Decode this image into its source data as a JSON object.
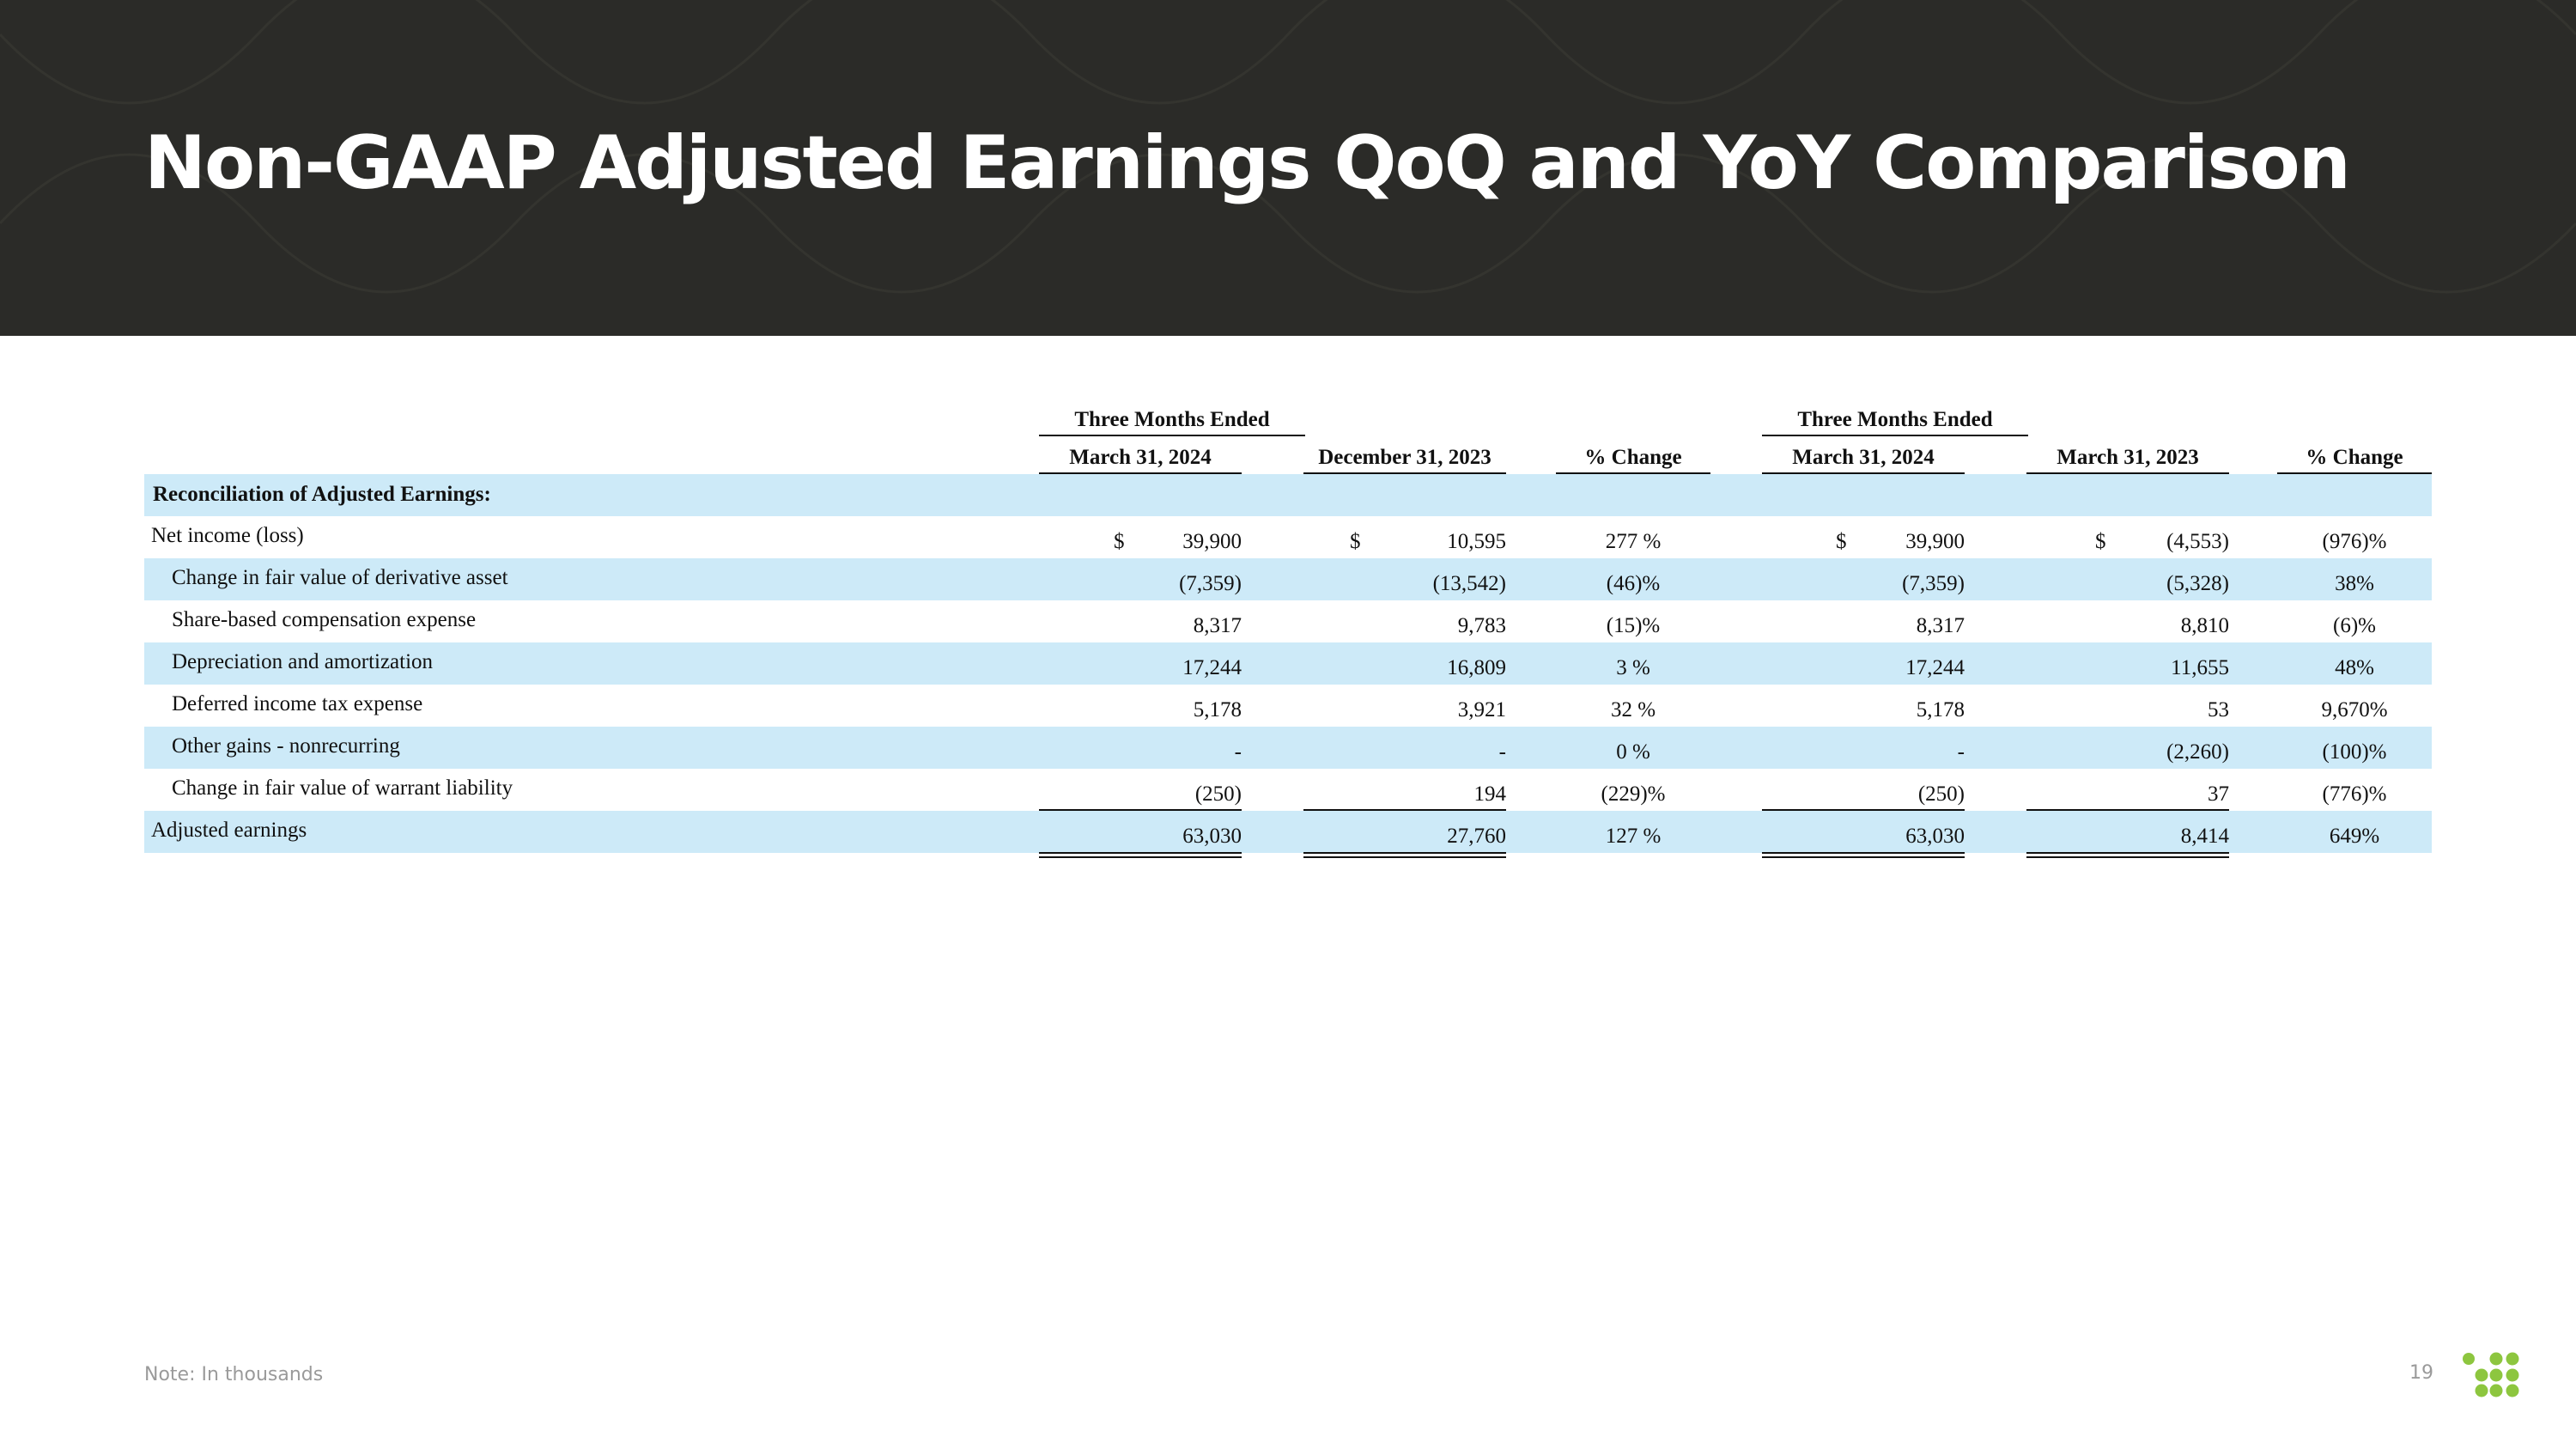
{
  "slide": {
    "title": "Non-GAAP Adjusted Earnings QoQ and YoY Comparison",
    "footnote": "Note: In thousands",
    "page_number": "19"
  },
  "colors": {
    "header_bg": "#2b2b28",
    "row_highlight": "#cdeaf8",
    "logo_green": "#8dc63f",
    "footnote_gray": "#9a9a9a"
  },
  "table": {
    "group_headers": [
      "Three Months Ended",
      "Three Months Ended"
    ],
    "columns": [
      "March 31, 2024",
      "December 31, 2023",
      "% Change",
      "March 31, 2024",
      "March 31, 2023",
      "% Change"
    ],
    "section_header": "Reconciliation of Adjusted Earnings:",
    "currency_symbol": "$",
    "rows": [
      {
        "label": "Net income (loss)",
        "values": [
          "39,900",
          "10,595",
          "277 %",
          "39,900",
          "(4,553)",
          "(976)%"
        ]
      },
      {
        "label": "Change in fair value of derivative asset",
        "values": [
          "(7,359)",
          "(13,542)",
          "(46)%",
          "(7,359)",
          "(5,328)",
          "38%"
        ]
      },
      {
        "label": "Share-based compensation expense",
        "values": [
          "8,317",
          "9,783",
          "(15)%",
          "8,317",
          "8,810",
          "(6)%"
        ]
      },
      {
        "label": "Depreciation and amortization",
        "values": [
          "17,244",
          "16,809",
          "3 %",
          "17,244",
          "11,655",
          "48%"
        ]
      },
      {
        "label": "Deferred income tax expense",
        "values": [
          "5,178",
          "3,921",
          "32 %",
          "5,178",
          "53",
          "9,670%"
        ]
      },
      {
        "label": "Other gains - nonrecurring",
        "values": [
          "-",
          "-",
          "0 %",
          "-",
          "(2,260)",
          "(100)%"
        ]
      },
      {
        "label": "Change in fair value of warrant liability",
        "values": [
          "(250)",
          "194",
          "(229)%",
          "(250)",
          "37",
          "(776)%"
        ]
      },
      {
        "label": "Adjusted earnings",
        "values": [
          "63,030",
          "27,760",
          "127 %",
          "63,030",
          "8,414",
          "649%"
        ]
      }
    ]
  }
}
